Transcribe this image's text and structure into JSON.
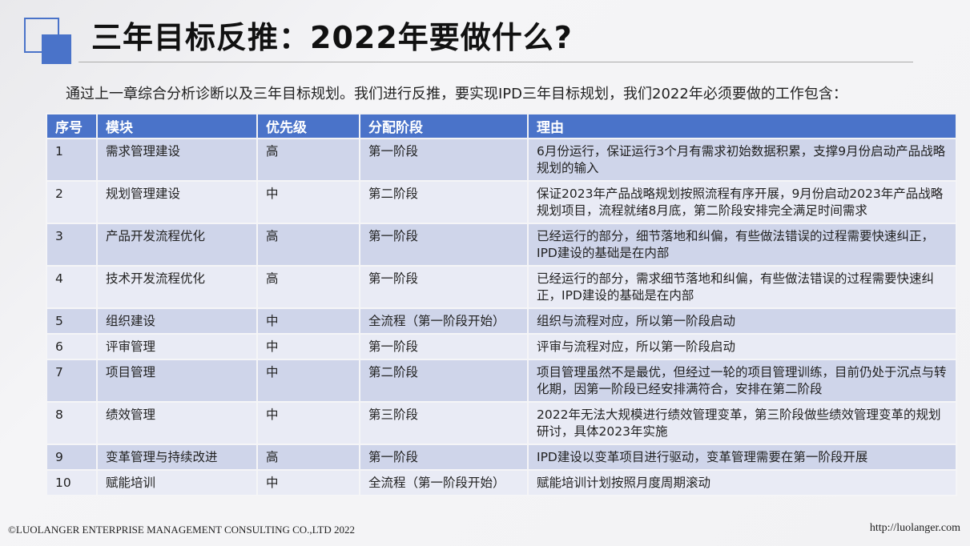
{
  "title": "三年目标反推：2022年要做什么?",
  "intro": "通过上一章综合分析诊断以及三年目标规划。我们进行反推，要实现IPD三年目标规划，我们2022年必须要做的工作包含：",
  "colors": {
    "accent": "#4a73c9",
    "row_odd": "#cfd5ea",
    "row_even": "#e9ebf5"
  },
  "table": {
    "headers": [
      "序号",
      "模块",
      "优先级",
      "分配阶段",
      "理由"
    ],
    "rows": [
      [
        "1",
        "需求管理建设",
        "高",
        "第一阶段",
        "6月份运行，保证运行3个月有需求初始数据积累，支撑9月份启动产品战略规划的输入"
      ],
      [
        "2",
        "规划管理建设",
        "中",
        "第二阶段",
        "保证2023年产品战略规划按照流程有序开展，9月份启动2023年产品战略规划项目，流程就绪8月底，第二阶段安排完全满足时间需求"
      ],
      [
        "3",
        "产品开发流程优化",
        "高",
        "第一阶段",
        "已经运行的部分，细节落地和纠偏，有些做法错误的过程需要快速纠正，IPD建设的基础是在内部"
      ],
      [
        "4",
        "技术开发流程优化",
        "高",
        "第一阶段",
        "已经运行的部分，需求细节落地和纠偏，有些做法错误的过程需要快速纠正，IPD建设的基础是在内部"
      ],
      [
        "5",
        "组织建设",
        "中",
        "全流程（第一阶段开始）",
        "组织与流程对应，所以第一阶段启动"
      ],
      [
        "6",
        "评审管理",
        "中",
        "第一阶段",
        "评审与流程对应，所以第一阶段启动"
      ],
      [
        "7",
        "项目管理",
        "中",
        "第二阶段",
        "项目管理虽然不是最优，但经过一轮的项目管理训练，目前仍处于沉点与转化期，因第一阶段已经安排满符合，安排在第二阶段"
      ],
      [
        "8",
        "绩效管理",
        "中",
        "第三阶段",
        "2022年无法大规模进行绩效管理变革，第三阶段做些绩效管理变革的规划研讨，具体2023年实施"
      ],
      [
        "9",
        "变革管理与持续改进",
        "高",
        "第一阶段",
        "IPD建设以变革项目进行驱动，变革管理需要在第一阶段开展"
      ],
      [
        "10",
        "赋能培训",
        "中",
        "全流程（第一阶段开始）",
        "赋能培训计划按照月度周期滚动"
      ]
    ]
  },
  "footer": {
    "copyright": "©LUOLANGER  ENTERPRISE MANAGEMENT CONSULTING CO.,LTD  2022",
    "url": "http://luolanger.com"
  }
}
